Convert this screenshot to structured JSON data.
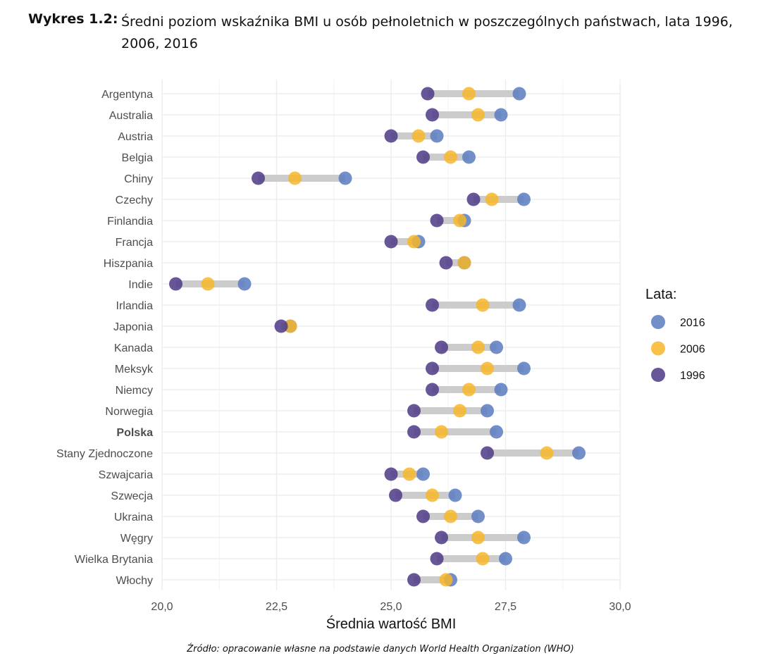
{
  "title_prefix": "Wykres 1.2:",
  "title": "Średni poziom wskaźnika BMI u osób pełnoletnich w poszczególnych państwach, lata 1996, 2006, 2016",
  "source": "Źródło: opracowanie własne na podstawie danych World Health Organization (WHO)",
  "chart_data": {
    "type": "scatter",
    "subtype": "dumbbell",
    "xlabel": "Średnia wartość BMI",
    "ylabel": "",
    "xlim": [
      20,
      30
    ],
    "x_ticks": [
      "20,0",
      "22,5",
      "25,0",
      "27,5",
      "30,0"
    ],
    "grid": true,
    "legend_title": "Lata:",
    "legend_position": "right",
    "highlighted_category": "Polska",
    "colors": {
      "2016": "#5b7bbf",
      "2006": "#f7b62a",
      "1996": "#4e3a86",
      "connector": "#cccccc"
    },
    "categories": [
      "Argentyna",
      "Australia",
      "Austria",
      "Belgia",
      "Chiny",
      "Czechy",
      "Finlandia",
      "Francja",
      "Hiszpania",
      "Indie",
      "Irlandia",
      "Japonia",
      "Kanada",
      "Meksyk",
      "Niemcy",
      "Norwegia",
      "Polska",
      "Stany Zjednoczone",
      "Szwajcaria",
      "Szwecja",
      "Ukraina",
      "Węgry",
      "Wielka Brytania",
      "Włochy"
    ],
    "series": [
      {
        "name": "2016",
        "values": [
          27.8,
          27.4,
          26.0,
          26.7,
          24.0,
          27.9,
          26.6,
          25.6,
          26.6,
          21.8,
          27.8,
          22.8,
          27.3,
          27.9,
          27.4,
          27.1,
          27.3,
          29.1,
          25.7,
          26.4,
          26.9,
          27.9,
          27.5,
          26.3
        ]
      },
      {
        "name": "2006",
        "values": [
          26.7,
          26.9,
          25.6,
          26.3,
          22.9,
          27.2,
          26.5,
          25.5,
          26.6,
          21.0,
          27.0,
          22.8,
          26.9,
          27.1,
          26.7,
          26.5,
          26.1,
          28.4,
          25.4,
          25.9,
          26.3,
          26.9,
          27.0,
          26.2
        ]
      },
      {
        "name": "1996",
        "values": [
          25.8,
          25.9,
          25.0,
          25.7,
          22.1,
          26.8,
          26.0,
          25.0,
          26.2,
          20.3,
          25.9,
          22.6,
          26.1,
          25.9,
          25.9,
          25.5,
          25.5,
          27.1,
          25.0,
          25.1,
          25.7,
          26.1,
          26.0,
          25.5
        ]
      }
    ]
  }
}
